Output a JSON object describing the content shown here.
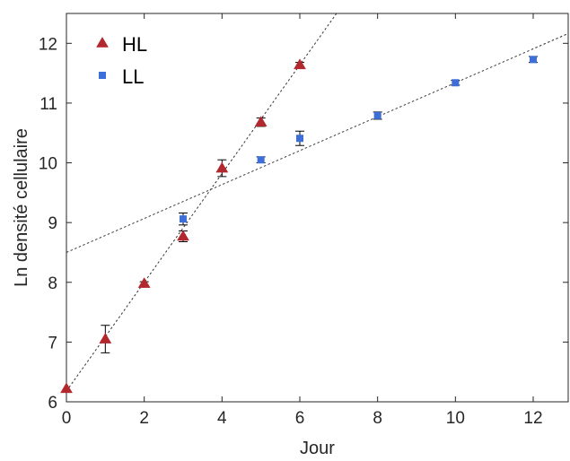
{
  "chart_data": {
    "type": "scatter",
    "title": "",
    "xlabel": "Jour",
    "ylabel": "Ln densité cellulaire",
    "xlim": [
      0,
      12.9
    ],
    "ylim": [
      6,
      12.5
    ],
    "xticks": [
      0,
      2,
      4,
      6,
      8,
      10,
      12
    ],
    "yticks": [
      6,
      7,
      8,
      9,
      10,
      11,
      12
    ],
    "grid": false,
    "legend_position": "top-left",
    "series": [
      {
        "name": "HL",
        "marker": "triangle",
        "color": "#b2282e",
        "x": [
          0,
          1,
          2,
          3,
          4,
          5,
          6
        ],
        "y": [
          6.22,
          7.05,
          7.98,
          8.77,
          9.91,
          10.68,
          11.64
        ],
        "err": [
          0.0,
          0.23,
          0.03,
          0.09,
          0.14,
          0.07,
          0.04
        ]
      },
      {
        "name": "LL",
        "marker": "square",
        "color": "#3e6fd8",
        "x": [
          3,
          5,
          6,
          8,
          10,
          12
        ],
        "y": [
          9.06,
          10.05,
          10.41,
          10.79,
          11.34,
          11.73
        ],
        "err": [
          0.1,
          0.05,
          0.12,
          0.06,
          0.04,
          0.05
        ]
      }
    ],
    "trendlines": [
      {
        "series": "HL",
        "intercept": 6.18,
        "slope": 0.91
      },
      {
        "series": "LL",
        "intercept": 8.5,
        "slope": 0.284
      }
    ]
  }
}
